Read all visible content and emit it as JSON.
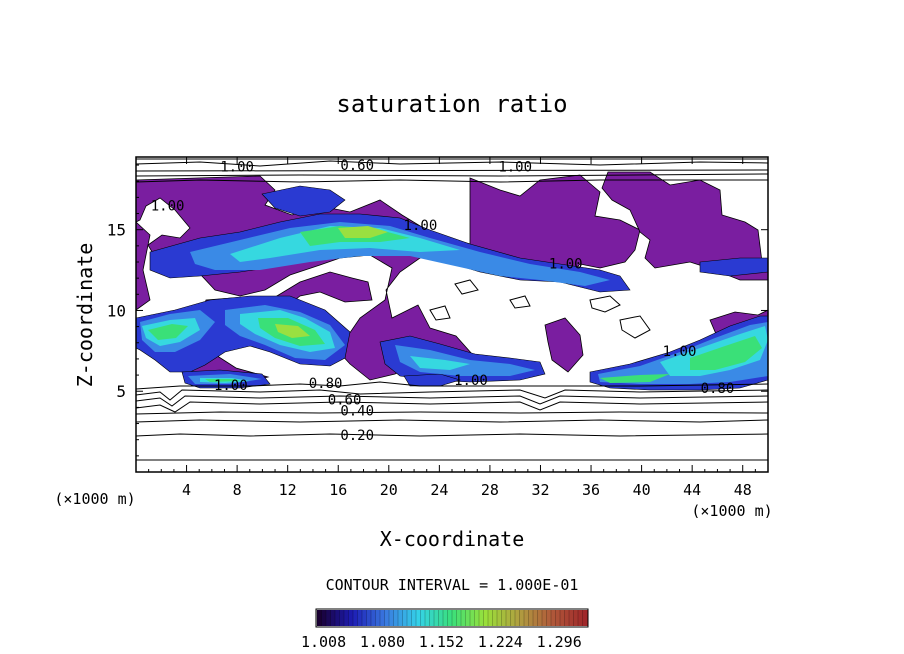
{
  "chart_data": {
    "type": "contour",
    "title": "saturation ratio",
    "xlabel": "X-coordinate",
    "ylabel": "Z-coordinate",
    "x_units": "(×1000 m)",
    "y_units": "(×1000 m)",
    "xlim": [
      0,
      50
    ],
    "ylim": [
      0,
      19.5
    ],
    "x_ticks": [
      4,
      8,
      12,
      16,
      20,
      24,
      28,
      32,
      36,
      40,
      44,
      48
    ],
    "y_ticks": [
      5,
      10,
      15
    ],
    "contour_interval_text": "CONTOUR INTERVAL = 1.000E-01",
    "contour_labels": [
      {
        "text": "0.20",
        "x": 17.5,
        "y": 2.3
      },
      {
        "text": "0.40",
        "x": 17.5,
        "y": 3.8
      },
      {
        "text": "0.60",
        "x": 16.5,
        "y": 4.5
      },
      {
        "text": "0.60",
        "x": 17.5,
        "y": 19.0
      },
      {
        "text": "0.80",
        "x": 15.0,
        "y": 5.5
      },
      {
        "text": "0.80",
        "x": 46.0,
        "y": 5.2
      },
      {
        "text": "1.00",
        "x": 7.5,
        "y": 5.4
      },
      {
        "text": "1.00",
        "x": 26.5,
        "y": 5.7
      },
      {
        "text": "1.00",
        "x": 43.0,
        "y": 7.5
      },
      {
        "text": "1.00",
        "x": 34.0,
        "y": 12.9
      },
      {
        "text": "1.00",
        "x": 8.0,
        "y": 18.9
      },
      {
        "text": "1.00",
        "x": 30.0,
        "y": 18.9
      },
      {
        "text": "1.00",
        "x": 2.5,
        "y": 16.5
      },
      {
        "text": "1.00",
        "x": 22.5,
        "y": 15.3
      }
    ],
    "levels": [
      0.1,
      0.2,
      0.3,
      0.4,
      0.5,
      0.6,
      0.7,
      0.8,
      0.9,
      1.0
    ],
    "colorbar": {
      "min": 1.0,
      "max": 1.33,
      "tick_labels": [
        "1.008",
        "1.080",
        "1.152",
        "1.224",
        "1.296"
      ],
      "colors": [
        "#1a0033",
        "#1c1cb4",
        "#3a7ae0",
        "#34d2e8",
        "#3ae07a",
        "#9ae03a",
        "#b0a040",
        "#b05a3a",
        "#a0282a"
      ]
    },
    "fill_colors": {
      "purple": "#7a1ea0",
      "blue": "#2a3ad2",
      "light_blue": "#3a8ae6",
      "cyan": "#36d8e0",
      "green": "#3ae078",
      "lime": "#9ae040"
    }
  }
}
